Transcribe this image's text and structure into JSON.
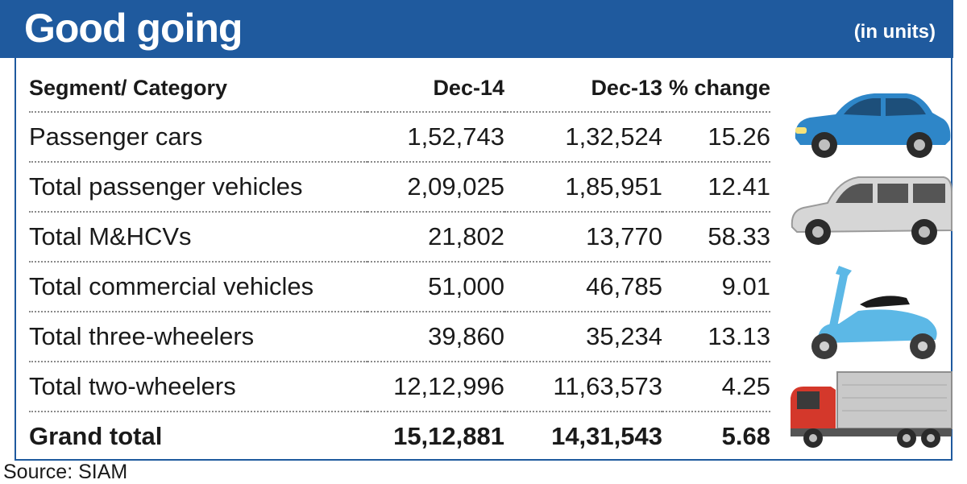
{
  "header": {
    "title": "Good going",
    "unit_note": "(in units)"
  },
  "columns": [
    "Segment/ Category",
    "Dec-14",
    "Dec-13",
    "% change"
  ],
  "rows": [
    {
      "segment": "Passenger cars",
      "dec14": "1,52,743",
      "dec13": "1,32,524",
      "change": "15.26"
    },
    {
      "segment": "Total passenger vehicles",
      "dec14": "2,09,025",
      "dec13": "1,85,951",
      "change": "12.41"
    },
    {
      "segment": "Total M&HCVs",
      "dec14": "21,802",
      "dec13": "13,770",
      "change": "58.33"
    },
    {
      "segment": "Total commercial vehicles",
      "dec14": "51,000",
      "dec13": "46,785",
      "change": "9.01"
    },
    {
      "segment": "Total three-wheelers",
      "dec14": "39,860",
      "dec13": "35,234",
      "change": "13.13"
    },
    {
      "segment": "Total two-wheelers",
      "dec14": "12,12,996",
      "dec13": "11,63,573",
      "change": "4.25"
    },
    {
      "segment": "Grand total",
      "dec14": "15,12,881",
      "dec13": "14,31,543",
      "change": "5.68"
    }
  ],
  "source": "Source: SIAM",
  "icons": [
    "hatchback-car-icon",
    "minivan-icon",
    "scooter-icon",
    "truck-icon"
  ],
  "colors": {
    "header_bg": "#1f5a9e",
    "car": "#2e86c8",
    "van": "#d6d6d6",
    "scooter": "#5cb8e6",
    "truck_cab": "#d4382b"
  },
  "chart_data": {
    "type": "table",
    "title": "Good going",
    "subtitle": "(in units)",
    "columns": [
      "Segment/ Category",
      "Dec-14",
      "Dec-13",
      "% change"
    ],
    "categories": [
      "Passenger cars",
      "Total passenger vehicles",
      "Total M&HCVs",
      "Total commercial vehicles",
      "Total three-wheelers",
      "Total two-wheelers",
      "Grand total"
    ],
    "series": [
      {
        "name": "Dec-14",
        "values": [
          152743,
          209025,
          21802,
          51000,
          39860,
          1212996,
          1512881
        ]
      },
      {
        "name": "Dec-13",
        "values": [
          132524,
          185951,
          13770,
          46785,
          35234,
          1163573,
          1431543
        ]
      },
      {
        "name": "% change",
        "values": [
          15.26,
          12.41,
          58.33,
          9.01,
          13.13,
          4.25,
          5.68
        ]
      }
    ]
  }
}
